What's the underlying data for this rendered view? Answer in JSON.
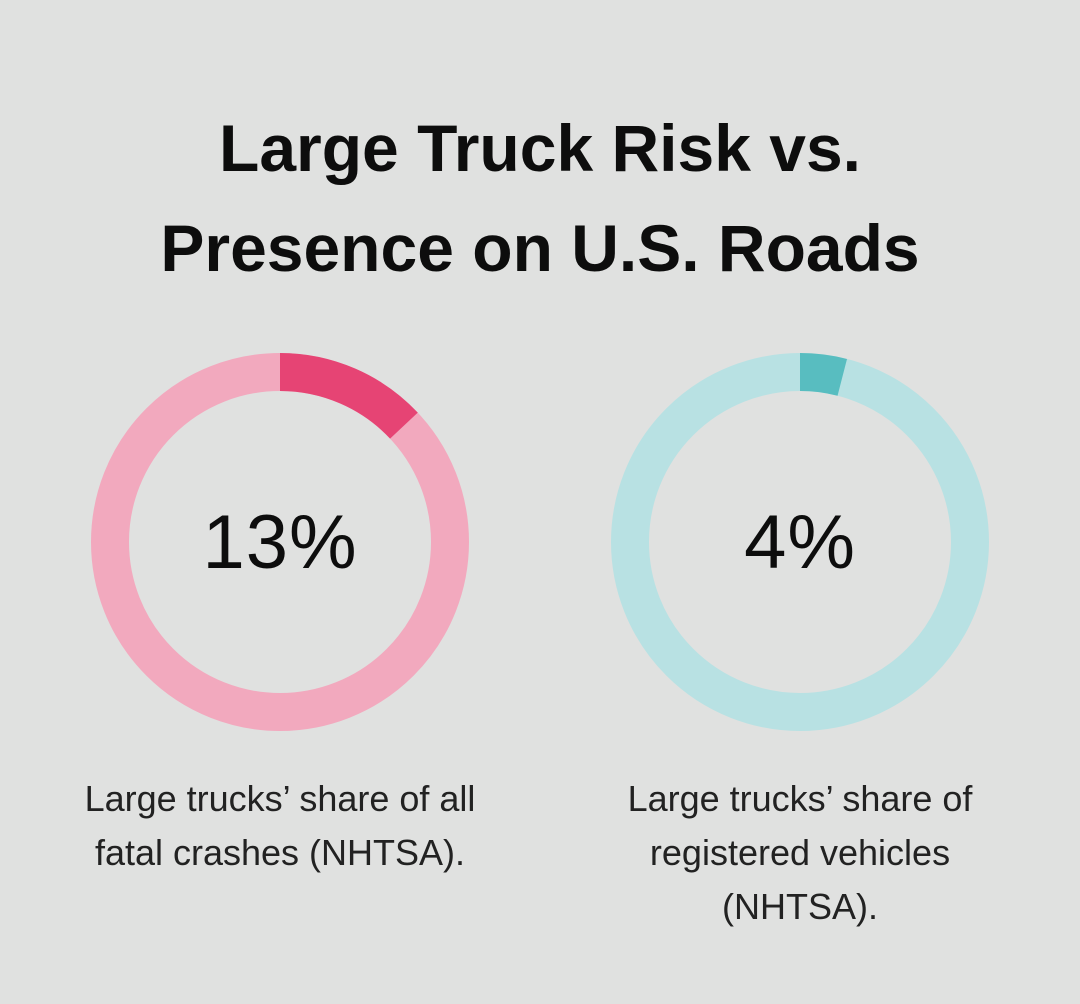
{
  "title_lines": [
    "Large Truck Risk vs.",
    "Presence on U.S. Roads"
  ],
  "chart_data": [
    {
      "type": "pie",
      "value": 13,
      "label": "13%",
      "caption": "Large trucks’ share of all fatal crashes (NHTSA).",
      "colors": {
        "value": "#e64474",
        "remainder": "#f2a9be"
      }
    },
    {
      "type": "pie",
      "value": 4,
      "label": "4%",
      "caption": "Large trucks’ share of registered vehicles (NHTSA).",
      "colors": {
        "value": "#58bdc0",
        "remainder": "#b8e1e3"
      }
    }
  ]
}
